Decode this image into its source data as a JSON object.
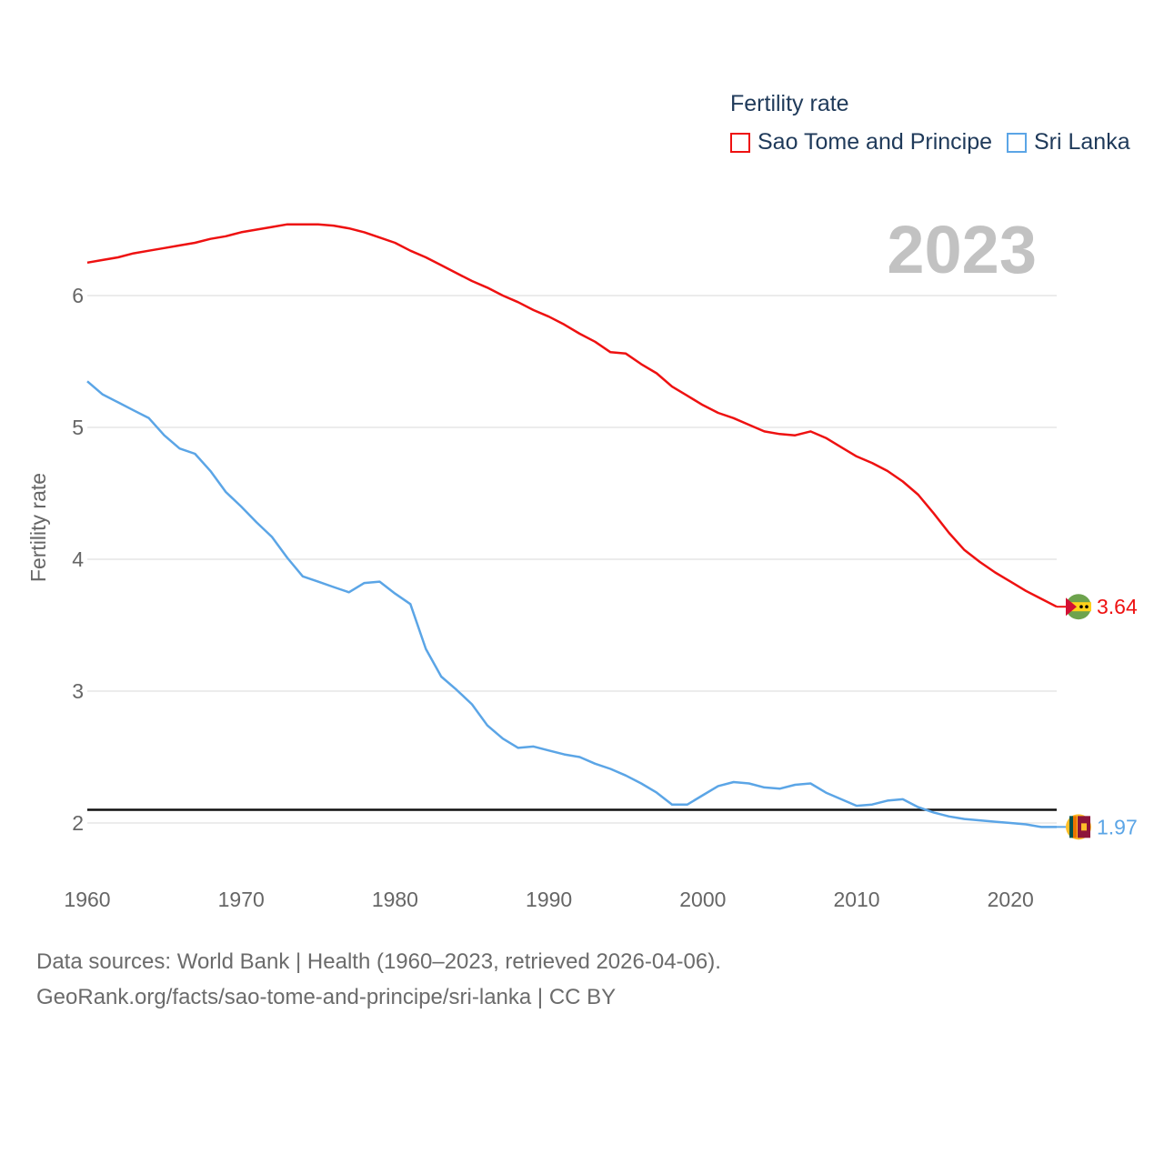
{
  "legend": {
    "title": "Fertility rate",
    "items": [
      {
        "label": "Sao Tome and Principe",
        "color": "#ee1111"
      },
      {
        "label": "Sri Lanka",
        "color": "#5ba5e6"
      }
    ]
  },
  "year_label": "2023",
  "footer": {
    "line1": "Data sources: World Bank | Health (1960–2023, retrieved 2026-04-06).",
    "line2": "GeoRank.org/facts/sao-tome-and-principe/sri-lanka | CC BY"
  },
  "chart_data": {
    "type": "line",
    "title": "Fertility rate",
    "xlabel": "",
    "ylabel": "Fertility rate",
    "xlim": [
      1960,
      2023
    ],
    "ylim": [
      1.6,
      6.55
    ],
    "x_ticks": [
      1960,
      1970,
      1980,
      1990,
      2000,
      2010,
      2020
    ],
    "y_ticks": [
      2,
      3,
      4,
      5,
      6
    ],
    "grid": true,
    "reference_line": {
      "y": 2.1,
      "color": "#111111"
    },
    "x": [
      1960,
      1961,
      1962,
      1963,
      1964,
      1965,
      1966,
      1967,
      1968,
      1969,
      1970,
      1971,
      1972,
      1973,
      1974,
      1975,
      1976,
      1977,
      1978,
      1979,
      1980,
      1981,
      1982,
      1983,
      1984,
      1985,
      1986,
      1987,
      1988,
      1989,
      1990,
      1991,
      1992,
      1993,
      1994,
      1995,
      1996,
      1997,
      1998,
      1999,
      2000,
      2001,
      2002,
      2003,
      2004,
      2005,
      2006,
      2007,
      2008,
      2009,
      2010,
      2011,
      2012,
      2013,
      2014,
      2015,
      2016,
      2017,
      2018,
      2019,
      2020,
      2021,
      2022,
      2023
    ],
    "series": [
      {
        "name": "Sao Tome and Principe",
        "color": "#ee1111",
        "end_label": "3.64",
        "values": [
          6.25,
          6.27,
          6.29,
          6.32,
          6.34,
          6.36,
          6.38,
          6.4,
          6.43,
          6.45,
          6.48,
          6.5,
          6.52,
          6.54,
          6.54,
          6.54,
          6.53,
          6.51,
          6.48,
          6.44,
          6.4,
          6.34,
          6.29,
          6.23,
          6.17,
          6.11,
          6.06,
          6.0,
          5.95,
          5.89,
          5.84,
          5.78,
          5.71,
          5.65,
          5.57,
          5.56,
          5.48,
          5.41,
          5.31,
          5.24,
          5.17,
          5.11,
          5.07,
          5.02,
          4.97,
          4.95,
          4.94,
          4.97,
          4.92,
          4.85,
          4.78,
          4.73,
          4.67,
          4.59,
          4.49,
          4.35,
          4.2,
          4.07,
          3.98,
          3.9,
          3.83,
          3.76,
          3.7,
          3.64
        ]
      },
      {
        "name": "Sri Lanka",
        "color": "#5ba5e6",
        "end_label": "1.97",
        "values": [
          5.35,
          5.25,
          5.19,
          5.13,
          5.07,
          4.94,
          4.84,
          4.8,
          4.67,
          4.51,
          4.4,
          4.28,
          4.17,
          4.01,
          3.87,
          3.83,
          3.79,
          3.75,
          3.82,
          3.83,
          3.74,
          3.66,
          3.32,
          3.11,
          3.01,
          2.9,
          2.74,
          2.64,
          2.57,
          2.58,
          2.55,
          2.52,
          2.5,
          2.45,
          2.41,
          2.36,
          2.3,
          2.23,
          2.14,
          2.14,
          2.21,
          2.28,
          2.31,
          2.3,
          2.27,
          2.26,
          2.29,
          2.3,
          2.23,
          2.18,
          2.13,
          2.14,
          2.17,
          2.18,
          2.12,
          2.08,
          2.05,
          2.03,
          2.02,
          2.01,
          2.0,
          1.99,
          1.97,
          1.97
        ]
      }
    ]
  }
}
